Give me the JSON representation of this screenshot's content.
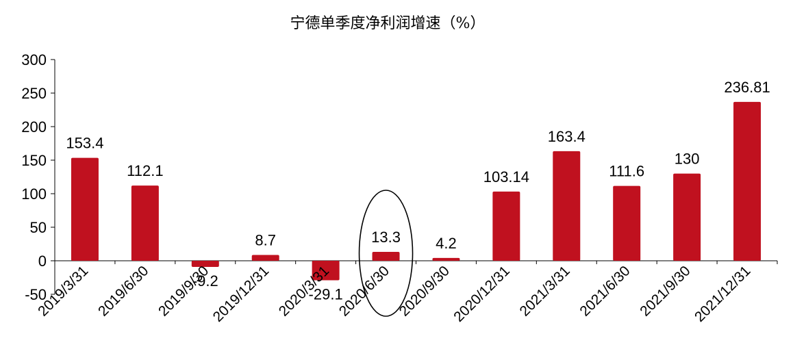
{
  "chart_data": {
    "type": "bar",
    "title": "宁德单季度净利润增速（%）",
    "xlabel": "",
    "ylabel": "",
    "categories": [
      "2019/3/31",
      "2019/6/30",
      "2019/9/30",
      "2019/12/31",
      "2020/3/31",
      "2020/6/30",
      "2020/9/30",
      "2020/12/31",
      "2021/3/31",
      "2021/6/30",
      "2021/9/30",
      "2021/12/31"
    ],
    "values": [
      153.4,
      112.1,
      -9.2,
      8.7,
      -29.1,
      13.3,
      4.2,
      103.14,
      163.4,
      111.6,
      130,
      236.81
    ],
    "data_labels": [
      "153.4",
      "112.1",
      "-9.2",
      "8.7",
      "-29.1",
      "13.3",
      "4.2",
      "103.14",
      "163.4",
      "111.6",
      "130",
      "236.81"
    ],
    "ylim": [
      -50,
      300
    ],
    "yticks": [
      -50,
      0,
      50,
      100,
      150,
      200,
      250,
      300
    ],
    "grid": false,
    "legend": "none",
    "bar_color": "#C0111F",
    "highlighted_category": "2020/6/30"
  }
}
